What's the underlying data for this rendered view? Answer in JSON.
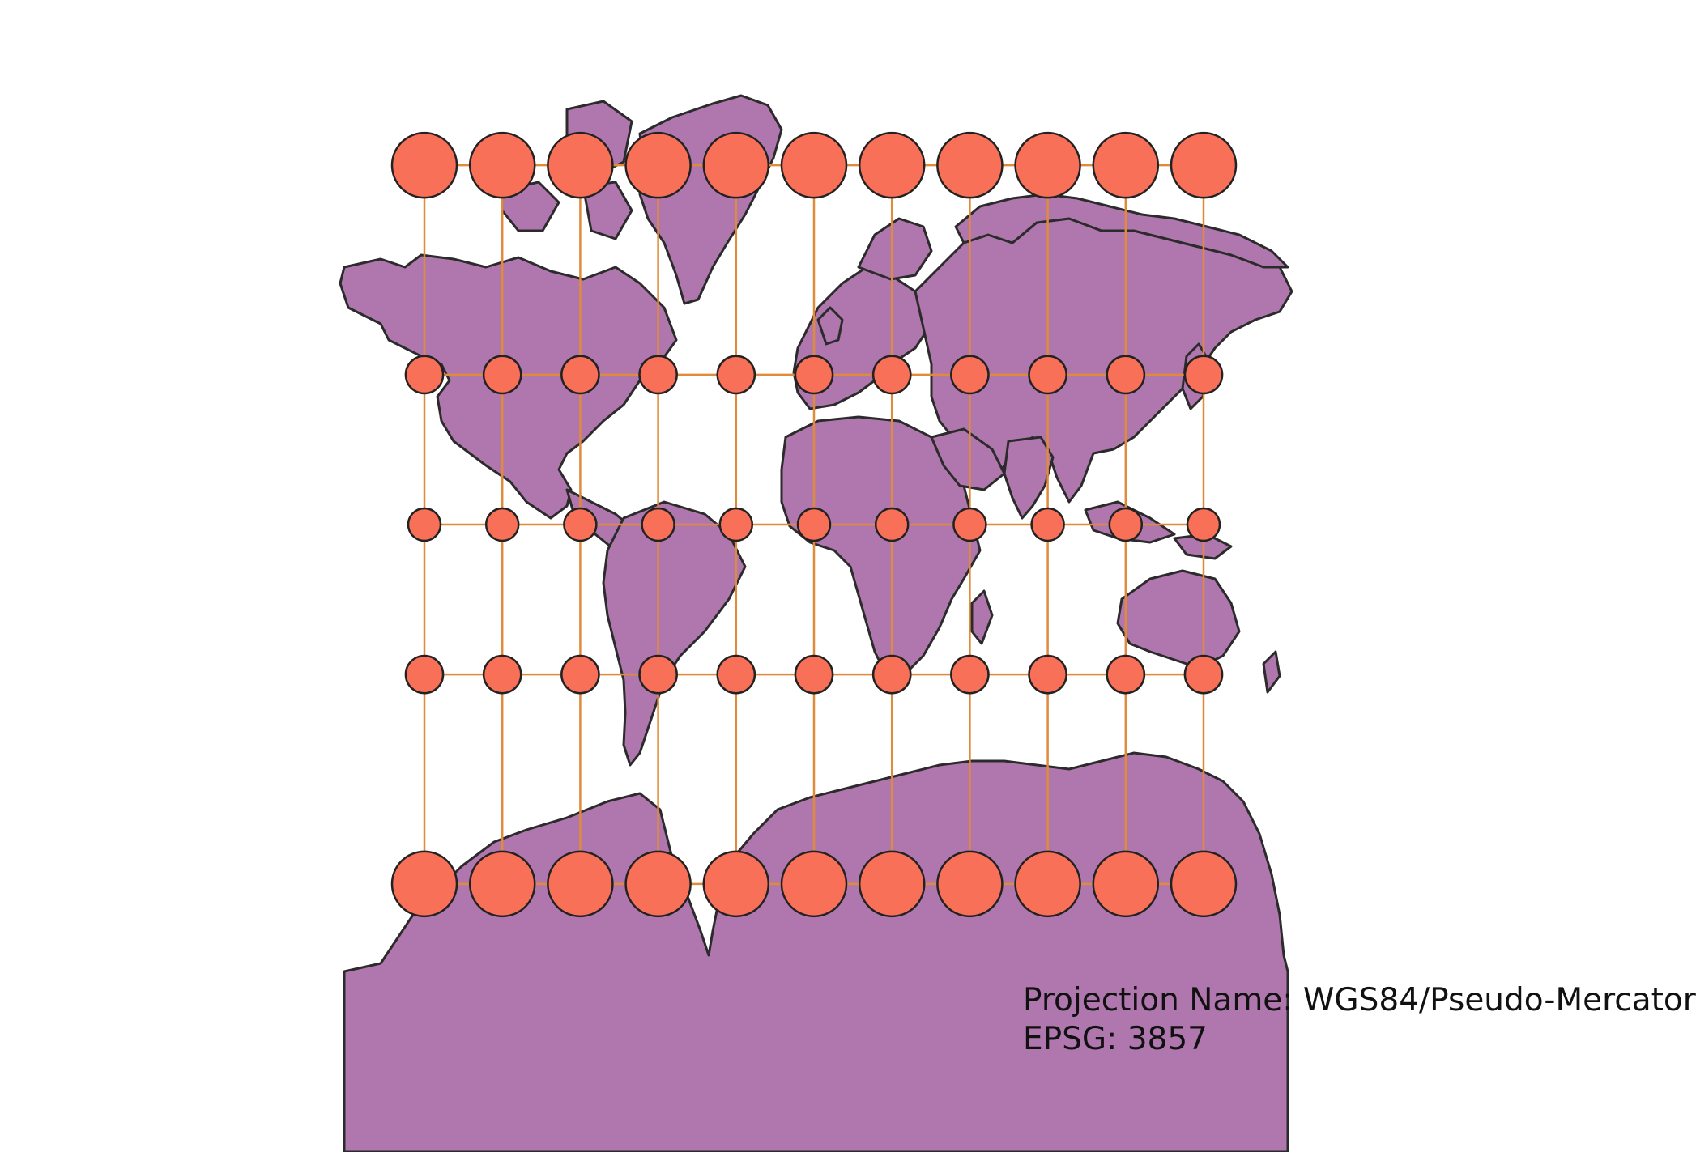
{
  "map": {
    "projection_label": "Projection Name:",
    "projection_name": "WGS84/Pseudo-Mercator",
    "epsg_label": "EPSG:",
    "epsg_code": "3857"
  },
  "colors": {
    "land": "#b077af",
    "coast": "#2b2b2b",
    "circle_fill": "#f97058",
    "circle_stroke": "#222222",
    "graticule": "#e08a3c",
    "background": "#ffffff"
  },
  "indicatrix": {
    "longitudes": [
      -150,
      -120,
      -90,
      -60,
      -30,
      0,
      30,
      60,
      90,
      120,
      150
    ],
    "latitudes": [
      60,
      30,
      0,
      -30,
      -60
    ]
  }
}
